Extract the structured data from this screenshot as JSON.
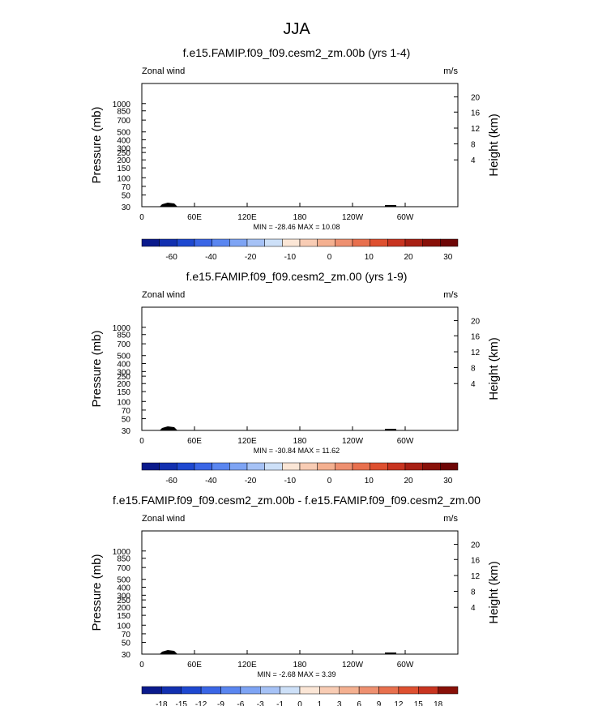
{
  "figure": {
    "title": "JJA"
  },
  "chart_data": [
    {
      "type": "contour",
      "title": "f.e15.FAMIP.f09_f09.cesm2_zm.00b (yrs 1-4)",
      "left_label": "Zonal wind",
      "right_label": "m/s",
      "ylabel": "Pressure (mb)",
      "ylabel_right": "Height (km)",
      "x_ticks": [
        "0",
        "60E",
        "120E",
        "180",
        "120W",
        "60W"
      ],
      "y_ticks": [
        "30",
        "50",
        "70",
        "100",
        "150",
        "200",
        "250",
        "300",
        "400",
        "500",
        "700",
        "850",
        "1000"
      ],
      "height_ticks": [
        "20",
        "16",
        "12",
        "8",
        "4"
      ],
      "stats": "MIN = -28.46  MAX = 10.08",
      "colorbar": {
        "levels": [
          "-60",
          "-40",
          "-20",
          "-10",
          "0",
          "10",
          "20",
          "30"
        ],
        "colors": [
          "#0a1a8c",
          "#1230b0",
          "#1e48d0",
          "#3a66e6",
          "#5a86f0",
          "#7ea4f4",
          "#a6c2f6",
          "#cde0f8",
          "#fbe6d6",
          "#f8ccb4",
          "#f4b090",
          "#ee9070",
          "#e8704e",
          "#de5030",
          "#c83420",
          "#a82014",
          "#881008",
          "#6e0606"
        ]
      }
    },
    {
      "type": "contour",
      "title": "f.e15.FAMIP.f09_f09.cesm2_zm.00 (yrs 1-9)",
      "left_label": "Zonal wind",
      "right_label": "m/s",
      "ylabel": "Pressure (mb)",
      "ylabel_right": "Height (km)",
      "x_ticks": [
        "0",
        "60E",
        "120E",
        "180",
        "120W",
        "60W"
      ],
      "y_ticks": [
        "30",
        "50",
        "70",
        "100",
        "150",
        "200",
        "250",
        "300",
        "400",
        "500",
        "700",
        "850",
        "1000"
      ],
      "height_ticks": [
        "20",
        "16",
        "12",
        "8",
        "4"
      ],
      "stats": "MIN = -30.84  MAX = 11.62",
      "colorbar": {
        "levels": [
          "-60",
          "-40",
          "-20",
          "-10",
          "0",
          "10",
          "20",
          "30"
        ],
        "colors": [
          "#0a1a8c",
          "#1230b0",
          "#1e48d0",
          "#3a66e6",
          "#5a86f0",
          "#7ea4f4",
          "#a6c2f6",
          "#cde0f8",
          "#fbe6d6",
          "#f8ccb4",
          "#f4b090",
          "#ee9070",
          "#e8704e",
          "#de5030",
          "#c83420",
          "#a82014",
          "#881008",
          "#6e0606"
        ]
      }
    },
    {
      "type": "contour",
      "title": "f.e15.FAMIP.f09_f09.cesm2_zm.00b - f.e15.FAMIP.f09_f09.cesm2_zm.00",
      "left_label": "Zonal wind",
      "right_label": "m/s",
      "ylabel": "Pressure (mb)",
      "ylabel_right": "Height (km)",
      "x_ticks": [
        "0",
        "60E",
        "120E",
        "180",
        "120W",
        "60W"
      ],
      "y_ticks": [
        "30",
        "50",
        "70",
        "100",
        "150",
        "200",
        "250",
        "300",
        "400",
        "500",
        "700",
        "850",
        "1000"
      ],
      "height_ticks": [
        "20",
        "16",
        "12",
        "8",
        "4"
      ],
      "stats": "MIN = -2.68  MAX =  3.39",
      "colorbar": {
        "levels": [
          "-18",
          "-15",
          "-12",
          "-9",
          "-6",
          "-3",
          "-1",
          "0",
          "1",
          "3",
          "6",
          "9",
          "12",
          "15",
          "18"
        ],
        "colors": [
          "#0a1a8c",
          "#1230b0",
          "#1e48d0",
          "#3a66e6",
          "#5a86f0",
          "#7ea4f4",
          "#a6c2f6",
          "#cde0f8",
          "#fbe6d6",
          "#f8ccb4",
          "#f4b090",
          "#ee9070",
          "#e8704e",
          "#de5030",
          "#c83420",
          "#881008"
        ]
      }
    }
  ]
}
